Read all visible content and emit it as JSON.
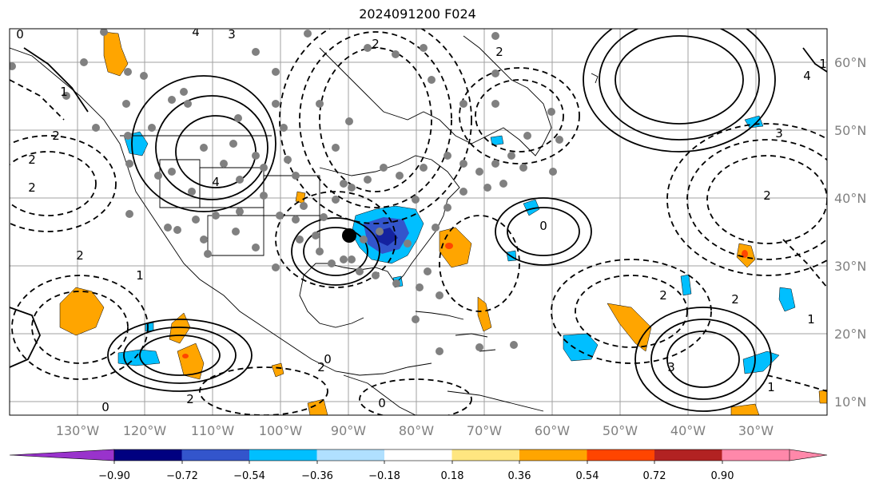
{
  "title": "2024091200 F024",
  "longitude_labels": [
    "130°W",
    "120°W",
    "110°W",
    "100°W",
    "90°W",
    "80°W",
    "70°W",
    "60°W",
    "50°W",
    "40°W",
    "30°W"
  ],
  "latitude_labels": [
    "60°N",
    "50°N",
    "40°N",
    "30°N",
    "20°N",
    "10°N"
  ],
  "contour_labels": [
    "0",
    "2",
    "4",
    "3",
    "1",
    "2",
    "1",
    "2",
    "0",
    "2",
    "2",
    "0",
    "3",
    "4",
    "4",
    "2",
    "1",
    "0",
    "2",
    "2",
    "1",
    "2",
    "2",
    "3",
    "2",
    "0",
    "1"
  ],
  "colorbar": {
    "tick_labels": [
      "−0.90",
      "−0.72",
      "−0.54",
      "−0.36",
      "−0.18",
      "0.18",
      "0.36",
      "0.54",
      "0.72",
      "0.90"
    ],
    "colors": {
      "under": "#9933cc",
      "bins": [
        "#9933cc",
        "#000080",
        "#3355cc",
        "#00bfff",
        "#b0e0ff",
        "#ffffff",
        "#ffe680",
        "#ffa500",
        "#ff4500",
        "#b22222",
        "#ff88aa"
      ],
      "over": "#ff88aa"
    }
  },
  "colors": {
    "grid": "#a0a0a0",
    "coast": "#000000",
    "station": "#808080"
  }
}
